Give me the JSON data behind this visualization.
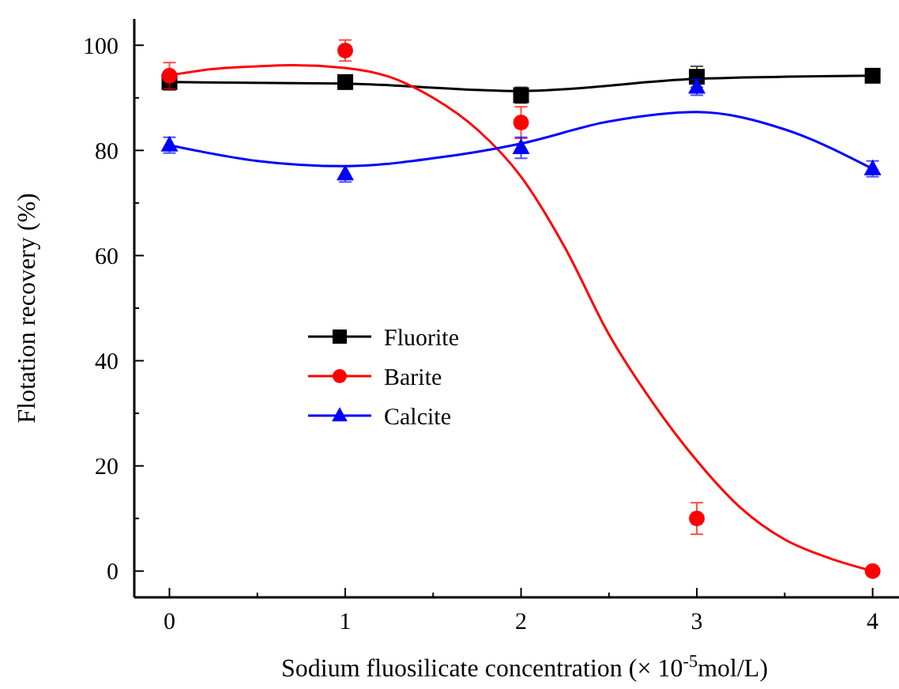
{
  "chart_data": {
    "type": "scatter",
    "xlabel": "Sodium fluosilicate concentration (× 10$^{-5}$mol/L)",
    "ylabel": "Flotation recovery (%)",
    "xlim": [
      -0.2,
      4.15
    ],
    "ylim": [
      -5,
      105
    ],
    "xticks": [
      0,
      {
        "value": 0.5,
        "label": null
      },
      1,
      {
        "value": 1.5,
        "label": null
      },
      2,
      {
        "value": 2.5,
        "label": null
      },
      3,
      {
        "value": 3.5,
        "label": null
      },
      4
    ],
    "yticks": [
      0,
      {
        "value": 10,
        "label": null
      },
      20,
      {
        "value": 30,
        "label": null
      },
      40,
      {
        "value": 50,
        "label": null
      },
      60,
      {
        "value": 70,
        "label": null
      },
      80,
      {
        "value": 90,
        "label": null
      },
      100
    ],
    "grid": false,
    "legend": "left",
    "x": [
      0,
      1,
      2,
      3,
      4
    ],
    "series": [
      {
        "type": "line",
        "color": "#000000",
        "x": [
          0,
          1,
          2,
          3,
          4
        ],
        "values": [
          93,
          92.7,
          91.3,
          93.6,
          94.2
        ]
      },
      {
        "type": "line",
        "color": "#ff0000",
        "x": [
          0,
          0.25,
          0.5,
          0.7,
          1,
          1.25,
          1.5,
          1.75,
          2,
          2.25,
          2.5,
          2.75,
          3,
          3.25,
          3.5,
          3.75,
          4
        ],
        "values": [
          94.3,
          95.5,
          96,
          96.2,
          95.7,
          94,
          90,
          84,
          75,
          61.5,
          45,
          32,
          21,
          12,
          6,
          2.5,
          0
        ]
      },
      {
        "type": "line",
        "color": "#0000ff",
        "x": [
          0,
          0.5,
          1,
          1.5,
          2,
          2.5,
          3,
          3.5,
          4
        ],
        "values": [
          81,
          78,
          77,
          78.5,
          81.3,
          85.5,
          87.3,
          84,
          76.5
        ]
      },
      {
        "name": "Fluorite",
        "color": "#000000",
        "marker": "square",
        "values": [
          93,
          93,
          90.5,
          94,
          94.2
        ],
        "errors": [
          1.5,
          1,
          1.5,
          2,
          1.2
        ]
      },
      {
        "name": "Barite",
        "color": "#ff0000",
        "marker": "circle",
        "values": [
          94.2,
          99,
          85.3,
          10,
          0
        ],
        "errors": [
          2.5,
          2,
          3,
          3,
          null
        ]
      },
      {
        "name": "Calcite",
        "color": "#0000ff",
        "marker": "triangle",
        "values": [
          81,
          75.5,
          80.5,
          92,
          76.5
        ],
        "errors": [
          1.5,
          1.5,
          2,
          1.5,
          1.5
        ]
      }
    ]
  }
}
